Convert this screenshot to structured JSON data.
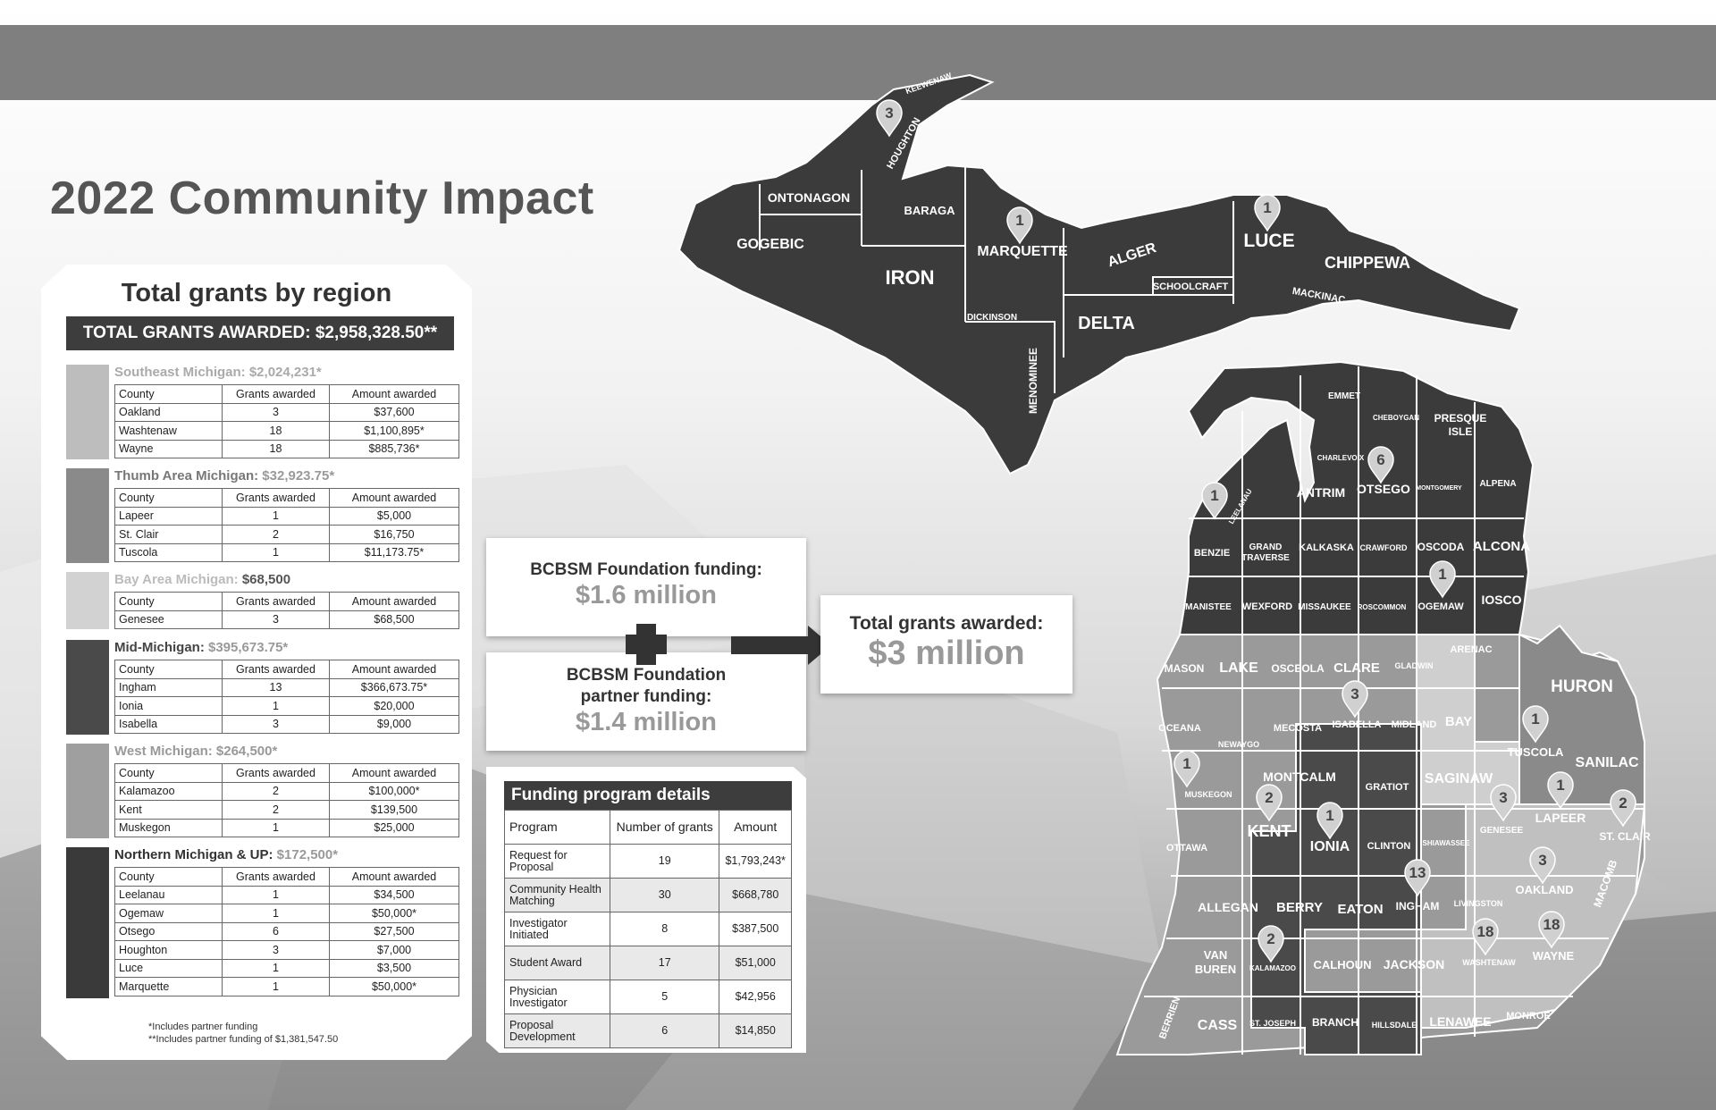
{
  "title": "2022 Community Impact",
  "colors": {
    "dark_region": "#3b3b3b",
    "mid_region": "#7b7b7b",
    "southeast": "#b9b9b9",
    "thumb": "#888888",
    "bay": "#cfcfcf",
    "mid_michigan": "#4a4a4a",
    "west": "#a0a0a0",
    "north": "#3a3a3a"
  },
  "regions_panel": {
    "title": "Total grants by region",
    "total_label": "TOTAL GRANTS AWARDED: $2,958,328.50**",
    "headers": [
      "County",
      "Grants awarded",
      "Amount awarded"
    ],
    "regions": [
      {
        "name": "Southeast Michigan:",
        "amount": "$2,024,231*",
        "name_color": "#aaaaaa",
        "amount_color": "#aaaaaa",
        "swatch": "#bdbdbd",
        "rows": [
          [
            "Oakland",
            "3",
            "$37,600"
          ],
          [
            "Washtenaw",
            "18",
            "$1,100,895*"
          ],
          [
            "Wayne",
            "18",
            "$885,736*"
          ]
        ]
      },
      {
        "name": "Thumb Area Michigan:",
        "amount": "$32,923.75*",
        "name_color": "#777777",
        "amount_color": "#999999",
        "swatch": "#8a8a8a",
        "rows": [
          [
            "Lapeer",
            "1",
            "$5,000"
          ],
          [
            "St. Clair",
            "2",
            "$16,750"
          ],
          [
            "Tuscola",
            "1",
            "$11,173.75*"
          ]
        ]
      },
      {
        "name": "Bay Area Michigan:",
        "amount": "$68,500",
        "name_color": "#bbbbbb",
        "amount_color": "#555555",
        "swatch": "#d2d2d2",
        "rows": [
          [
            "Genesee",
            "3",
            "$68,500"
          ]
        ]
      },
      {
        "name": "Mid-Michigan:",
        "amount": "$395,673.75*",
        "name_color": "#444444",
        "amount_color": "#999999",
        "swatch": "#4a4a4a",
        "rows": [
          [
            "Ingham",
            "13",
            "$366,673.75*"
          ],
          [
            "Ionia",
            "1",
            "$20,000"
          ],
          [
            "Isabella",
            "3",
            "$9,000"
          ]
        ]
      },
      {
        "name": "West Michigan:",
        "amount": "$264,500*",
        "name_color": "#999999",
        "amount_color": "#999999",
        "swatch": "#9f9f9f",
        "rows": [
          [
            "Kalamazoo",
            "2",
            "$100,000*"
          ],
          [
            "Kent",
            "2",
            "$139,500"
          ],
          [
            "Muskegon",
            "1",
            "$25,000"
          ]
        ]
      },
      {
        "name": "Northern Michigan & UP:",
        "amount": "$172,500*",
        "name_color": "#333333",
        "amount_color": "#999999",
        "swatch": "#3a3a3a",
        "rows": [
          [
            "Leelanau",
            "1",
            "$34,500"
          ],
          [
            "Ogemaw",
            "1",
            "$50,000*"
          ],
          [
            "Otsego",
            "6",
            "$27,500"
          ],
          [
            "Houghton",
            "3",
            "$7,000"
          ],
          [
            "Luce",
            "1",
            "$3,500"
          ],
          [
            "Marquette",
            "1",
            "$50,000*"
          ]
        ]
      }
    ],
    "footnote1": "*Includes partner funding",
    "footnote2": "**Includes partner funding of $1,381,547.50"
  },
  "funding": {
    "foundation_label": "BCBSM Foundation funding:",
    "foundation_value": "$1.6 million",
    "partner_label_1": "BCBSM Foundation",
    "partner_label_2": "partner funding:",
    "partner_value": "$1.4 million",
    "total_label": "Total grants awarded:",
    "total_value": "$3 million"
  },
  "program_details": {
    "title": "Funding program details",
    "headers": [
      "Program",
      "Number of grants",
      "Amount"
    ],
    "rows": [
      [
        "Request for Proposal",
        "19",
        "$1,793,243*"
      ],
      [
        "Community Health Matching",
        "30",
        "$668,780"
      ],
      [
        "Investigator Initiated",
        "8",
        "$387,500"
      ],
      [
        "Student Award",
        "17",
        "$51,000"
      ],
      [
        "Physician Investigator",
        "5",
        "$42,956"
      ],
      [
        "Proposal Development",
        "6",
        "$14,850"
      ]
    ]
  },
  "map": {
    "county_labels": [
      "KEEWENAW",
      "HOUGHTON",
      "ONTONAGON",
      "GOGEBIC",
      "BARAGA",
      "IRON",
      "MARQUETTE",
      "DICKINSON",
      "MENOMINEE",
      "ALGER",
      "SCHOOLCRAFT",
      "DELTA",
      "LUCE",
      "MACKINAC",
      "CHIPPEWA",
      "EMMET",
      "CHEBOYGAN",
      "PRESQUE ISLE",
      "CHARLEVOIX",
      "LEELANAU",
      "ANTRIM",
      "OTSEGO",
      "MONTGOMERY",
      "ALPENA",
      "BENZIE",
      "GRAND TRAVERSE",
      "KALKASKA",
      "CRAWFORD",
      "OSCODA",
      "ALCONA",
      "MANISTEE",
      "WEXFORD",
      "MISSAUKEE",
      "ROSCOMMON",
      "OGEMAW",
      "IOSCO",
      "MASON",
      "LAKE",
      "OSCEOLA",
      "CLARE",
      "GLADWIN",
      "ARENAC",
      "OCEANA",
      "NEWAYGO",
      "MECOSTA",
      "ISABELLA",
      "MIDLAND",
      "BAY",
      "HURON",
      "MUSKEGON",
      "MONTCALM",
      "GRATIOT",
      "SAGINAW",
      "TUSCOLA",
      "SANILAC",
      "OTTAWA",
      "KENT",
      "IONIA",
      "CLINTON",
      "SHIAWASSEE",
      "GENESEE",
      "LAPEER",
      "ST. CLAIR",
      "ALLEGAN",
      "BERRY",
      "EATON",
      "INGHAM",
      "LIVINGSTON",
      "OAKLAND",
      "MACOMB",
      "VAN BUREN",
      "KALAMAZOO",
      "CALHOUN",
      "JACKSON",
      "WASHTENAW",
      "WAYNE",
      "BERRIEN",
      "CASS",
      "ST. JOSEPH",
      "BRANCH",
      "HILLSDALE",
      "LENAWEE",
      "MONROE"
    ],
    "pins": [
      {
        "county": "HOUGHTON",
        "count": "3"
      },
      {
        "county": "MARQUETTE",
        "count": "1"
      },
      {
        "county": "LUCE",
        "count": "1"
      },
      {
        "county": "OTSEGO",
        "count": "6"
      },
      {
        "county": "LEELANAU",
        "count": "1"
      },
      {
        "county": "OGEMAW",
        "count": "1"
      },
      {
        "county": "ISABELLA",
        "count": "3"
      },
      {
        "county": "TUSCOLA",
        "count": "1"
      },
      {
        "county": "MUSKEGON",
        "count": "1"
      },
      {
        "county": "KENT",
        "count": "2"
      },
      {
        "county": "IONIA",
        "count": "1"
      },
      {
        "county": "GENESEE",
        "count": "3"
      },
      {
        "county": "LAPEER",
        "count": "1"
      },
      {
        "county": "ST. CLAIR",
        "count": "2"
      },
      {
        "county": "OAKLAND",
        "count": "3"
      },
      {
        "county": "INGHAM",
        "count": "13"
      },
      {
        "county": "KALAMAZOO",
        "count": "2"
      },
      {
        "county": "WASHTENAW",
        "count": "18"
      },
      {
        "county": "WAYNE",
        "count": "18"
      }
    ]
  }
}
